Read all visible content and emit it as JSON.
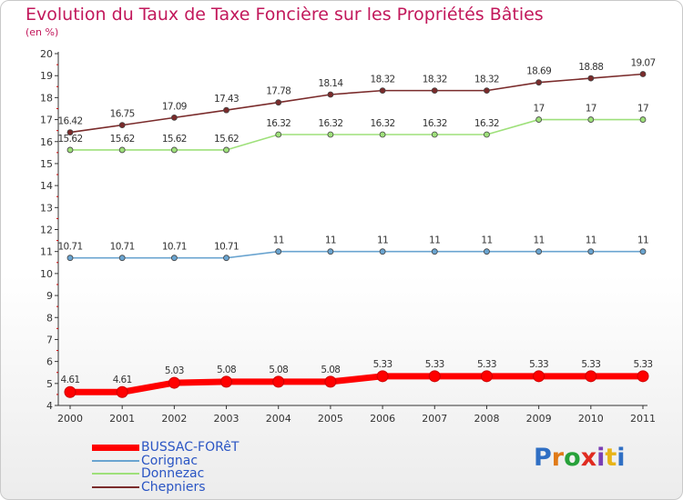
{
  "header": {
    "title": "Evolution du Taux de Taxe Foncière sur les Propriétés Bâties",
    "unit": "(en %)"
  },
  "logo_text": "Proxiti",
  "chart_data": {
    "type": "line",
    "title": "Evolution du Taux de Taxe Foncière sur les Propriétés Bâties",
    "ylabel": "(en %)",
    "xlabel": "",
    "x": [
      "2000",
      "2001",
      "2002",
      "2003",
      "2004",
      "2005",
      "2006",
      "2007",
      "2008",
      "2009",
      "2010",
      "2011"
    ],
    "ylim": [
      4,
      20
    ],
    "yticks": [
      "4",
      "5",
      "6",
      "7",
      "8",
      "9",
      "10",
      "11",
      "12",
      "13",
      "14",
      "15",
      "16",
      "17",
      "18",
      "19",
      "20"
    ],
    "grid": false,
    "legend_position": "bottom-left",
    "series": [
      {
        "name": "BUSSAC-FORêT",
        "color": "#ff0000",
        "emphasis": true,
        "values": [
          4.61,
          4.61,
          5.03,
          5.08,
          5.08,
          5.08,
          5.33,
          5.33,
          5.33,
          5.33,
          5.33,
          5.33
        ],
        "labels": [
          "4.61",
          "4.61",
          "5.03",
          "5.08",
          "5.08",
          "5.08",
          "5.33",
          "5.33",
          "5.33",
          "5.33",
          "5.33",
          "5.33"
        ]
      },
      {
        "name": "Corignac",
        "color": "#6aa4d0",
        "emphasis": false,
        "values": [
          10.71,
          10.71,
          10.71,
          10.71,
          11,
          11,
          11,
          11,
          11,
          11,
          11,
          11
        ],
        "labels": [
          "10.71",
          "10.71",
          "10.71",
          "10.71",
          "11",
          "11",
          "11",
          "11",
          "11",
          "11",
          "11",
          "11"
        ]
      },
      {
        "name": "Donnezac",
        "color": "#9ee07a",
        "emphasis": false,
        "values": [
          15.62,
          15.62,
          15.62,
          15.62,
          16.32,
          16.32,
          16.32,
          16.32,
          16.32,
          17,
          17,
          17
        ],
        "labels": [
          "15.62",
          "15.62",
          "15.62",
          "15.62",
          "16.32",
          "16.32",
          "16.32",
          "16.32",
          "16.32",
          "17",
          "17",
          "17"
        ]
      },
      {
        "name": "Chepniers",
        "color": "#7a2b2b",
        "emphasis": false,
        "values": [
          16.42,
          16.75,
          17.09,
          17.43,
          17.78,
          18.14,
          18.32,
          18.32,
          18.32,
          18.69,
          18.88,
          19.07
        ],
        "labels": [
          "16.42",
          "16.75",
          "17.09",
          "17.43",
          "17.78",
          "18.14",
          "18.32",
          "18.32",
          "18.32",
          "18.69",
          "18.88",
          "19.07"
        ]
      }
    ]
  }
}
